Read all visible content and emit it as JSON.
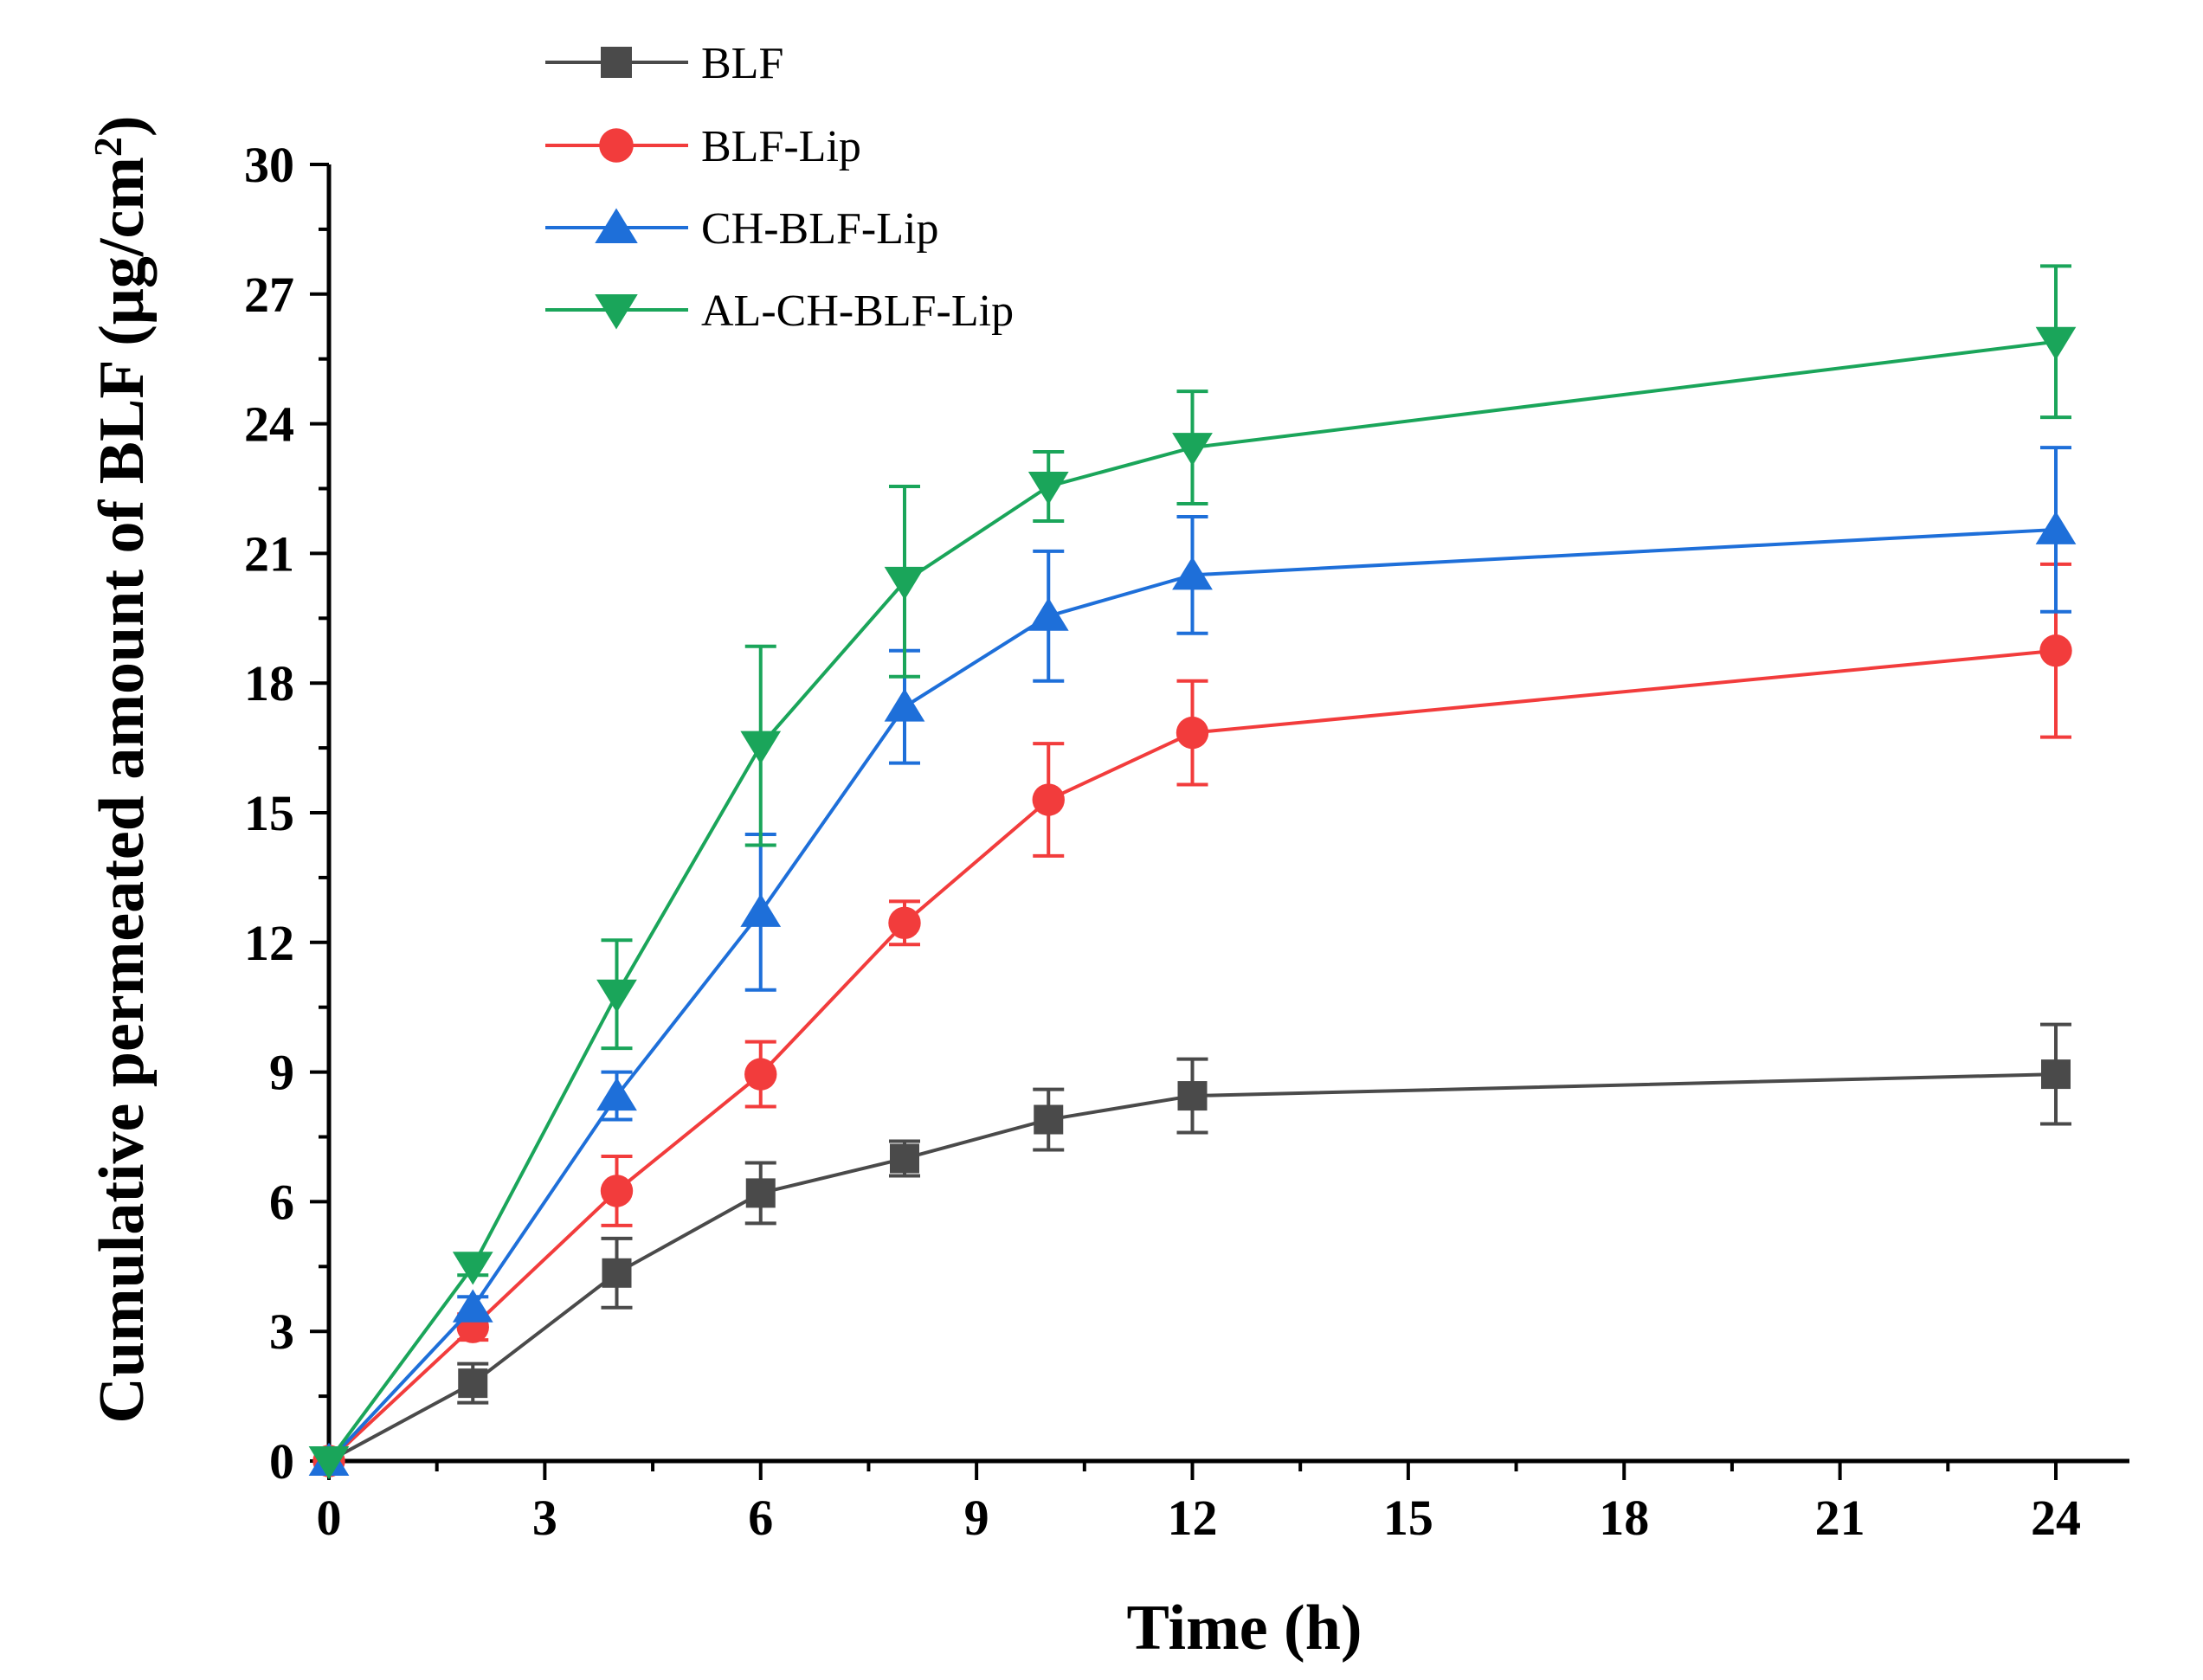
{
  "chart_data": {
    "type": "line",
    "title": "",
    "xlabel": "Time (h)",
    "ylabel_main": "Cumulative permeated amount of BLF (μg/cm",
    "ylabel_sup": "2",
    "ylabel_end": ")",
    "xlim": [
      0,
      25
    ],
    "ylim": [
      0,
      30
    ],
    "xticks": [
      0,
      3,
      6,
      9,
      12,
      15,
      18,
      21,
      24
    ],
    "yticks": [
      0,
      3,
      6,
      9,
      12,
      15,
      18,
      21,
      24,
      27,
      30
    ],
    "legend_position": "top-left",
    "x": [
      0,
      2,
      4,
      6,
      8,
      10,
      12,
      24
    ],
    "series": [
      {
        "name": "BLF",
        "color": "#4a4a4a",
        "marker": "square",
        "values": [
          0,
          1.8,
          4.35,
          6.2,
          7.0,
          7.9,
          8.45,
          8.95
        ],
        "errors": [
          0,
          0.45,
          0.8,
          0.7,
          0.4,
          0.7,
          0.85,
          1.15
        ]
      },
      {
        "name": "BLF-Lip",
        "color": "#f23c3c",
        "marker": "circle",
        "values": [
          0,
          3.1,
          6.25,
          8.95,
          12.45,
          15.3,
          16.85,
          18.75
        ],
        "errors": [
          0,
          0.3,
          0.8,
          0.75,
          0.5,
          1.3,
          1.2,
          2.0
        ]
      },
      {
        "name": "CH-BLF-Lip",
        "color": "#1e6fd9",
        "marker": "triangle-up",
        "values": [
          0,
          3.55,
          8.45,
          12.7,
          17.45,
          19.55,
          20.5,
          21.55
        ],
        "errors": [
          0,
          0.25,
          0.55,
          1.8,
          1.3,
          1.5,
          1.35,
          1.9
        ]
      },
      {
        "name": "AL-CH-BLF-Lip",
        "color": "#1aa55a",
        "marker": "triangle-down",
        "values": [
          0,
          4.5,
          10.8,
          16.55,
          20.35,
          22.55,
          23.45,
          25.9
        ],
        "errors": [
          0,
          0.2,
          1.25,
          2.3,
          2.2,
          0.8,
          1.3,
          1.75
        ]
      }
    ]
  }
}
